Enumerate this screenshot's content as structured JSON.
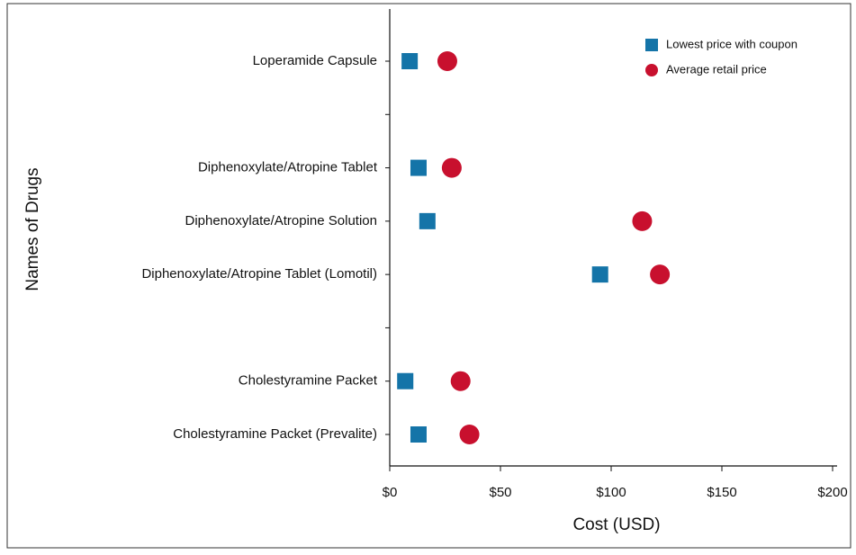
{
  "chart_data": {
    "type": "dot",
    "xlabel": "Cost (USD)",
    "ylabel": "Names of Drugs",
    "categories": [
      "Loperamide Capsule",
      null,
      "Diphenoxylate/Atropine Tablet",
      "Diphenoxylate/Atropine Solution",
      "Diphenoxylate/Atropine Tablet (Lomotil)",
      null,
      "Cholestyramine Packet",
      "Cholestyramine Packet (Prevalite)"
    ],
    "series": [
      {
        "name": "Lowest price with coupon",
        "color": "#1474a8",
        "marker": "square",
        "values": [
          9,
          null,
          13,
          17,
          95,
          null,
          7,
          13
        ]
      },
      {
        "name": "Average retail price",
        "color": "#c8102e",
        "marker": "circle",
        "values": [
          26,
          null,
          28,
          114,
          122,
          null,
          32,
          36
        ]
      }
    ],
    "xlim": [
      0,
      200
    ],
    "xticks": [
      {
        "value": 0,
        "label": "$0"
      },
      {
        "value": 50,
        "label": "$50"
      },
      {
        "value": 100,
        "label": "$100"
      },
      {
        "value": 150,
        "label": "$150"
      },
      {
        "value": 200,
        "label": "$200"
      }
    ],
    "legend": "upper right"
  }
}
